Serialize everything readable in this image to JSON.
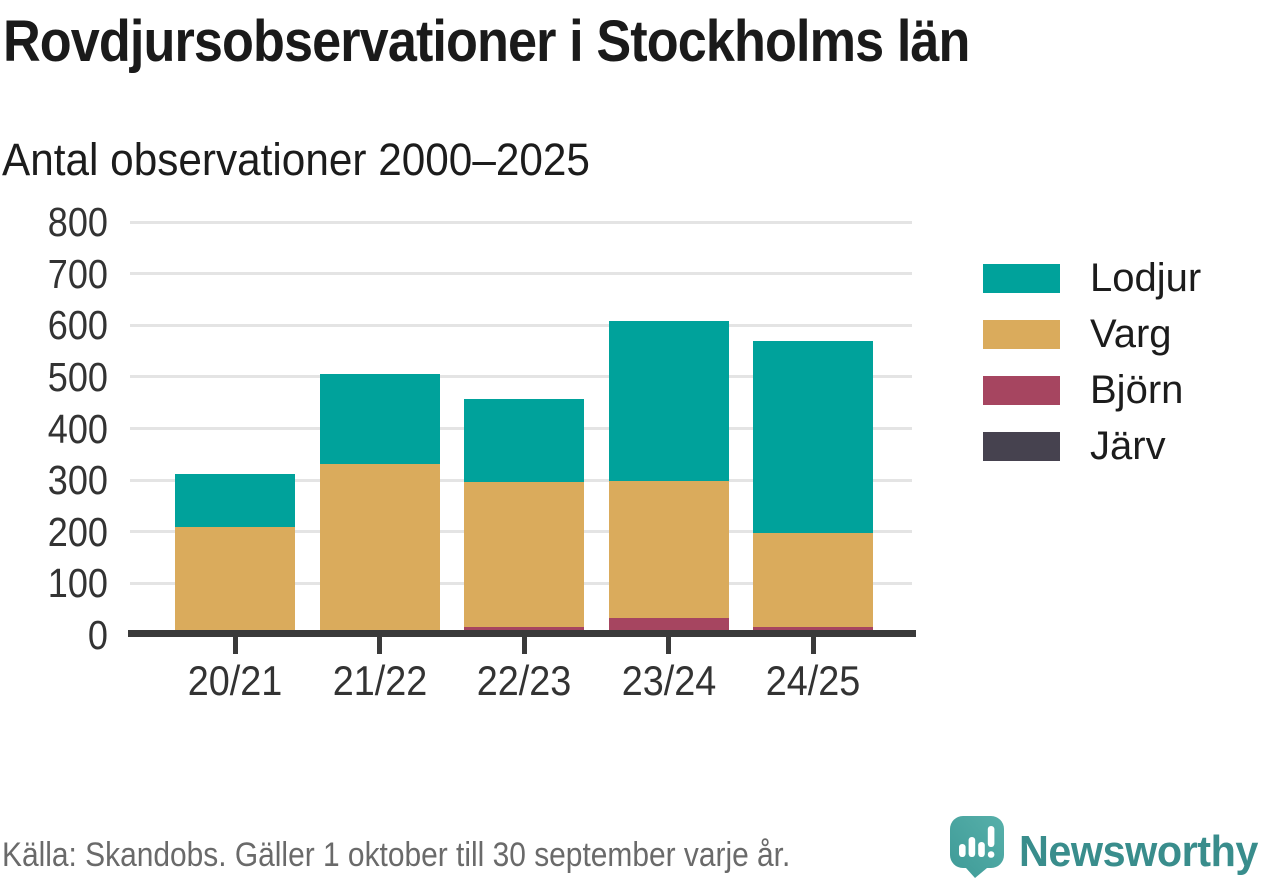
{
  "title": "Rovdjursobservationer i Stockholms län",
  "subtitle": "Antal observationer 2000–2025",
  "footer": {
    "source": "Källa: Skandobs. Gäller 1 oktober till 30 september varje år.",
    "brand": "Newsworthy"
  },
  "colors": {
    "lodjur": "#00A29B",
    "varg": "#DAAB5C",
    "bjorn": "#A64560",
    "jarv": "#46424F",
    "axis": "#3A3A3A",
    "grid": "#E4E4E4",
    "title_text": "#1A1A1A",
    "tick_text": "#333333",
    "source_text": "#6A6A6A",
    "brand_teal": "#398D8C",
    "logo_bubble": "#47A3A0"
  },
  "chart_data": {
    "type": "bar",
    "stacked": true,
    "title": "Rovdjursobservationer i Stockholms län",
    "subtitle": "Antal observationer 2000–2025",
    "categories": [
      "20/21",
      "21/22",
      "22/23",
      "23/24",
      "24/25"
    ],
    "series": [
      {
        "name": "Järv",
        "color": "#46424F",
        "values": [
          0,
          0,
          0,
          0,
          0
        ]
      },
      {
        "name": "Björn",
        "color": "#A64560",
        "values": [
          6,
          6,
          16,
          33,
          16
        ]
      },
      {
        "name": "Varg",
        "color": "#DAAB5C",
        "values": [
          204,
          326,
          281,
          265,
          182
        ]
      },
      {
        "name": "Lodjur",
        "color": "#00A29B",
        "values": [
          101,
          173,
          160,
          311,
          371
        ]
      }
    ],
    "stack_totals": [
      311,
      505,
      457,
      609,
      569
    ],
    "xlabel": "",
    "ylabel": "",
    "ylim": [
      0,
      800
    ],
    "yticks": [
      0,
      100,
      200,
      300,
      400,
      500,
      600,
      700,
      800
    ],
    "grid": true,
    "legend_position": "right",
    "legend_order": [
      "Lodjur",
      "Varg",
      "Björn",
      "Järv"
    ]
  }
}
